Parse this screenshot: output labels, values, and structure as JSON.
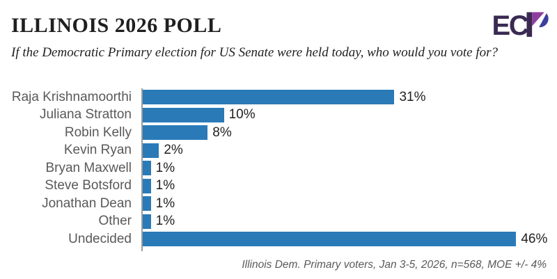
{
  "header": {
    "title": "ILLINOIS 2026 POLL",
    "subtitle": "If the Democratic Primary election for US Senate were held today, who would you vote for?"
  },
  "logo": {
    "text": "EC",
    "colors": {
      "dark": "#3a2a52",
      "purple": "#8c3f9e",
      "indigo": "#3b3f9c"
    }
  },
  "chart_data": {
    "type": "bar",
    "orientation": "horizontal",
    "title": "ILLINOIS 2026 POLL",
    "categories": [
      "Raja Krishnamoorthi",
      "Juliana Stratton",
      "Robin Kelly",
      "Kevin Ryan",
      "Bryan Maxwell",
      "Steve Botsford",
      "Jonathan Dean",
      "Other",
      "Undecided"
    ],
    "values": [
      31,
      10,
      8,
      2,
      1,
      1,
      1,
      1,
      46
    ],
    "value_labels": [
      "31%",
      "10%",
      "8%",
      "2%",
      "1%",
      "1%",
      "1%",
      "1%",
      "46%"
    ],
    "xlabel": "",
    "ylabel": "",
    "xlim": [
      0,
      50
    ],
    "grid": false,
    "legend": false,
    "bar_color": "#2a7ab8"
  },
  "footer": {
    "source_note": "Illinois Dem. Primary voters, Jan 3-5, 2026, n=568, MOE +/- 4%"
  }
}
